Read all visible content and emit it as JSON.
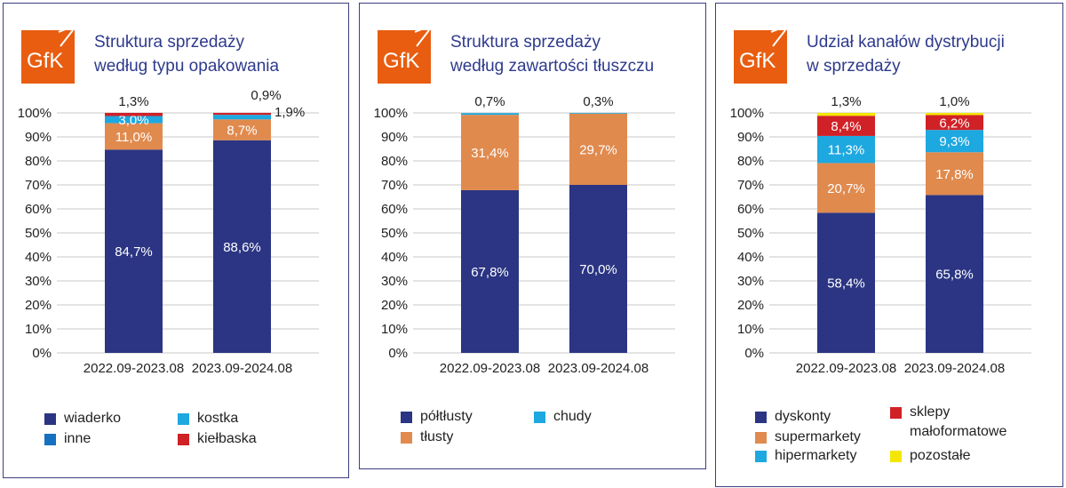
{
  "chart_data": [
    {
      "type": "bar",
      "stacked": true,
      "title": "Struktura sprzedaży według typu opakowania",
      "title_lines": [
        "Struktura sprzedaży",
        "według typu opakowania"
      ],
      "logo": "GfK",
      "categories": [
        "2022.09-2023.08",
        "2023.09-2024.08"
      ],
      "yticks": [
        "0%",
        "10%",
        "20%",
        "30%",
        "40%",
        "50%",
        "60%",
        "70%",
        "80%",
        "90%",
        "100%"
      ],
      "ylim": [
        0,
        100
      ],
      "grid": true,
      "legend_position": "bottom",
      "series": [
        {
          "name": "wiaderko",
          "values": [
            84.7,
            88.6
          ],
          "labels": [
            "84,7%",
            "88,6%"
          ],
          "color": "#2b3583",
          "legend_color": "#2b3583"
        },
        {
          "name": "inne",
          "values": [
            11.0,
            8.7
          ],
          "labels": [
            "11,0%",
            "8,7%"
          ],
          "color": "#e08a4e",
          "legend_color": "#1570c0"
        },
        {
          "name": "kostka",
          "values": [
            3.0,
            1.9
          ],
          "labels": [
            "3,0%",
            "1,9%"
          ],
          "color": "#1ea8e0",
          "legend_color": "#1ea8e0"
        },
        {
          "name": "kiełbaska",
          "values": [
            1.3,
            0.9
          ],
          "labels": [
            "1,3%",
            "0,9%"
          ],
          "color": "#d02127",
          "legend_color": "#d02127"
        }
      ],
      "legend_order": [
        0,
        2,
        1,
        3
      ]
    },
    {
      "type": "bar",
      "stacked": true,
      "title": "Struktura sprzedaży według zawartości tłuszczu",
      "title_lines": [
        "Struktura sprzedaży",
        "według zawartości tłuszczu"
      ],
      "logo": "GfK",
      "categories": [
        "2022.09-2023.08",
        "2023.09-2024.08"
      ],
      "yticks": [
        "0%",
        "10%",
        "20%",
        "30%",
        "40%",
        "50%",
        "60%",
        "70%",
        "80%",
        "90%",
        "100%"
      ],
      "ylim": [
        0,
        100
      ],
      "grid": true,
      "legend_position": "bottom",
      "series": [
        {
          "name": "półtłusty",
          "values": [
            67.8,
            70.0
          ],
          "labels": [
            "67,8%",
            "70,0%"
          ],
          "color": "#2b3583",
          "legend_color": "#2b3583"
        },
        {
          "name": "tłusty",
          "values": [
            31.4,
            29.7
          ],
          "labels": [
            "31,4%",
            "29,7%"
          ],
          "color": "#e08a4e",
          "legend_color": "#e08a4e"
        },
        {
          "name": "chudy",
          "values": [
            0.7,
            0.3
          ],
          "labels": [
            "0,7%",
            "0,3%"
          ],
          "color": "#1ea8e0",
          "legend_color": "#1ea8e0"
        }
      ],
      "legend_order": [
        0,
        2,
        1
      ]
    },
    {
      "type": "bar",
      "stacked": true,
      "title": "Udział kanałów dystrybucji w sprzedaży",
      "title_lines": [
        "Udział kanałów dystrybucji",
        "w sprzedaży"
      ],
      "logo": "GfK",
      "categories": [
        "2022.09-2023.08",
        "2023.09-2024.08"
      ],
      "yticks": [
        "0%",
        "10%",
        "20%",
        "30%",
        "40%",
        "50%",
        "60%",
        "70%",
        "80%",
        "90%",
        "100%"
      ],
      "ylim": [
        0,
        100
      ],
      "grid": true,
      "legend_position": "bottom",
      "series": [
        {
          "name": "dyskonty",
          "values": [
            58.4,
            65.8
          ],
          "labels": [
            "58,4%",
            "65,8%"
          ],
          "color": "#2b3583",
          "legend_color": "#2b3583"
        },
        {
          "name": "supermarkety",
          "values": [
            20.7,
            17.8
          ],
          "labels": [
            "20,7%",
            "17,8%"
          ],
          "color": "#e08a4e",
          "legend_color": "#e08a4e"
        },
        {
          "name": "hipermarkety",
          "values": [
            11.3,
            9.3
          ],
          "labels": [
            "11,3%",
            "9,3%"
          ],
          "color": "#1ea8e0",
          "legend_color": "#1ea8e0"
        },
        {
          "name": "sklepy małoformatowe",
          "values": [
            8.4,
            6.2
          ],
          "labels": [
            "8,4%",
            "6,2%"
          ],
          "color": "#d02127",
          "legend_color": "#d02127"
        },
        {
          "name": "pozostałe",
          "values": [
            1.3,
            1.0
          ],
          "labels": [
            "1,3%",
            "1,0%"
          ],
          "color": "#f5e600",
          "legend_color": "#f5e600"
        }
      ],
      "legend_order": [
        0,
        3,
        1,
        2,
        4
      ]
    }
  ]
}
